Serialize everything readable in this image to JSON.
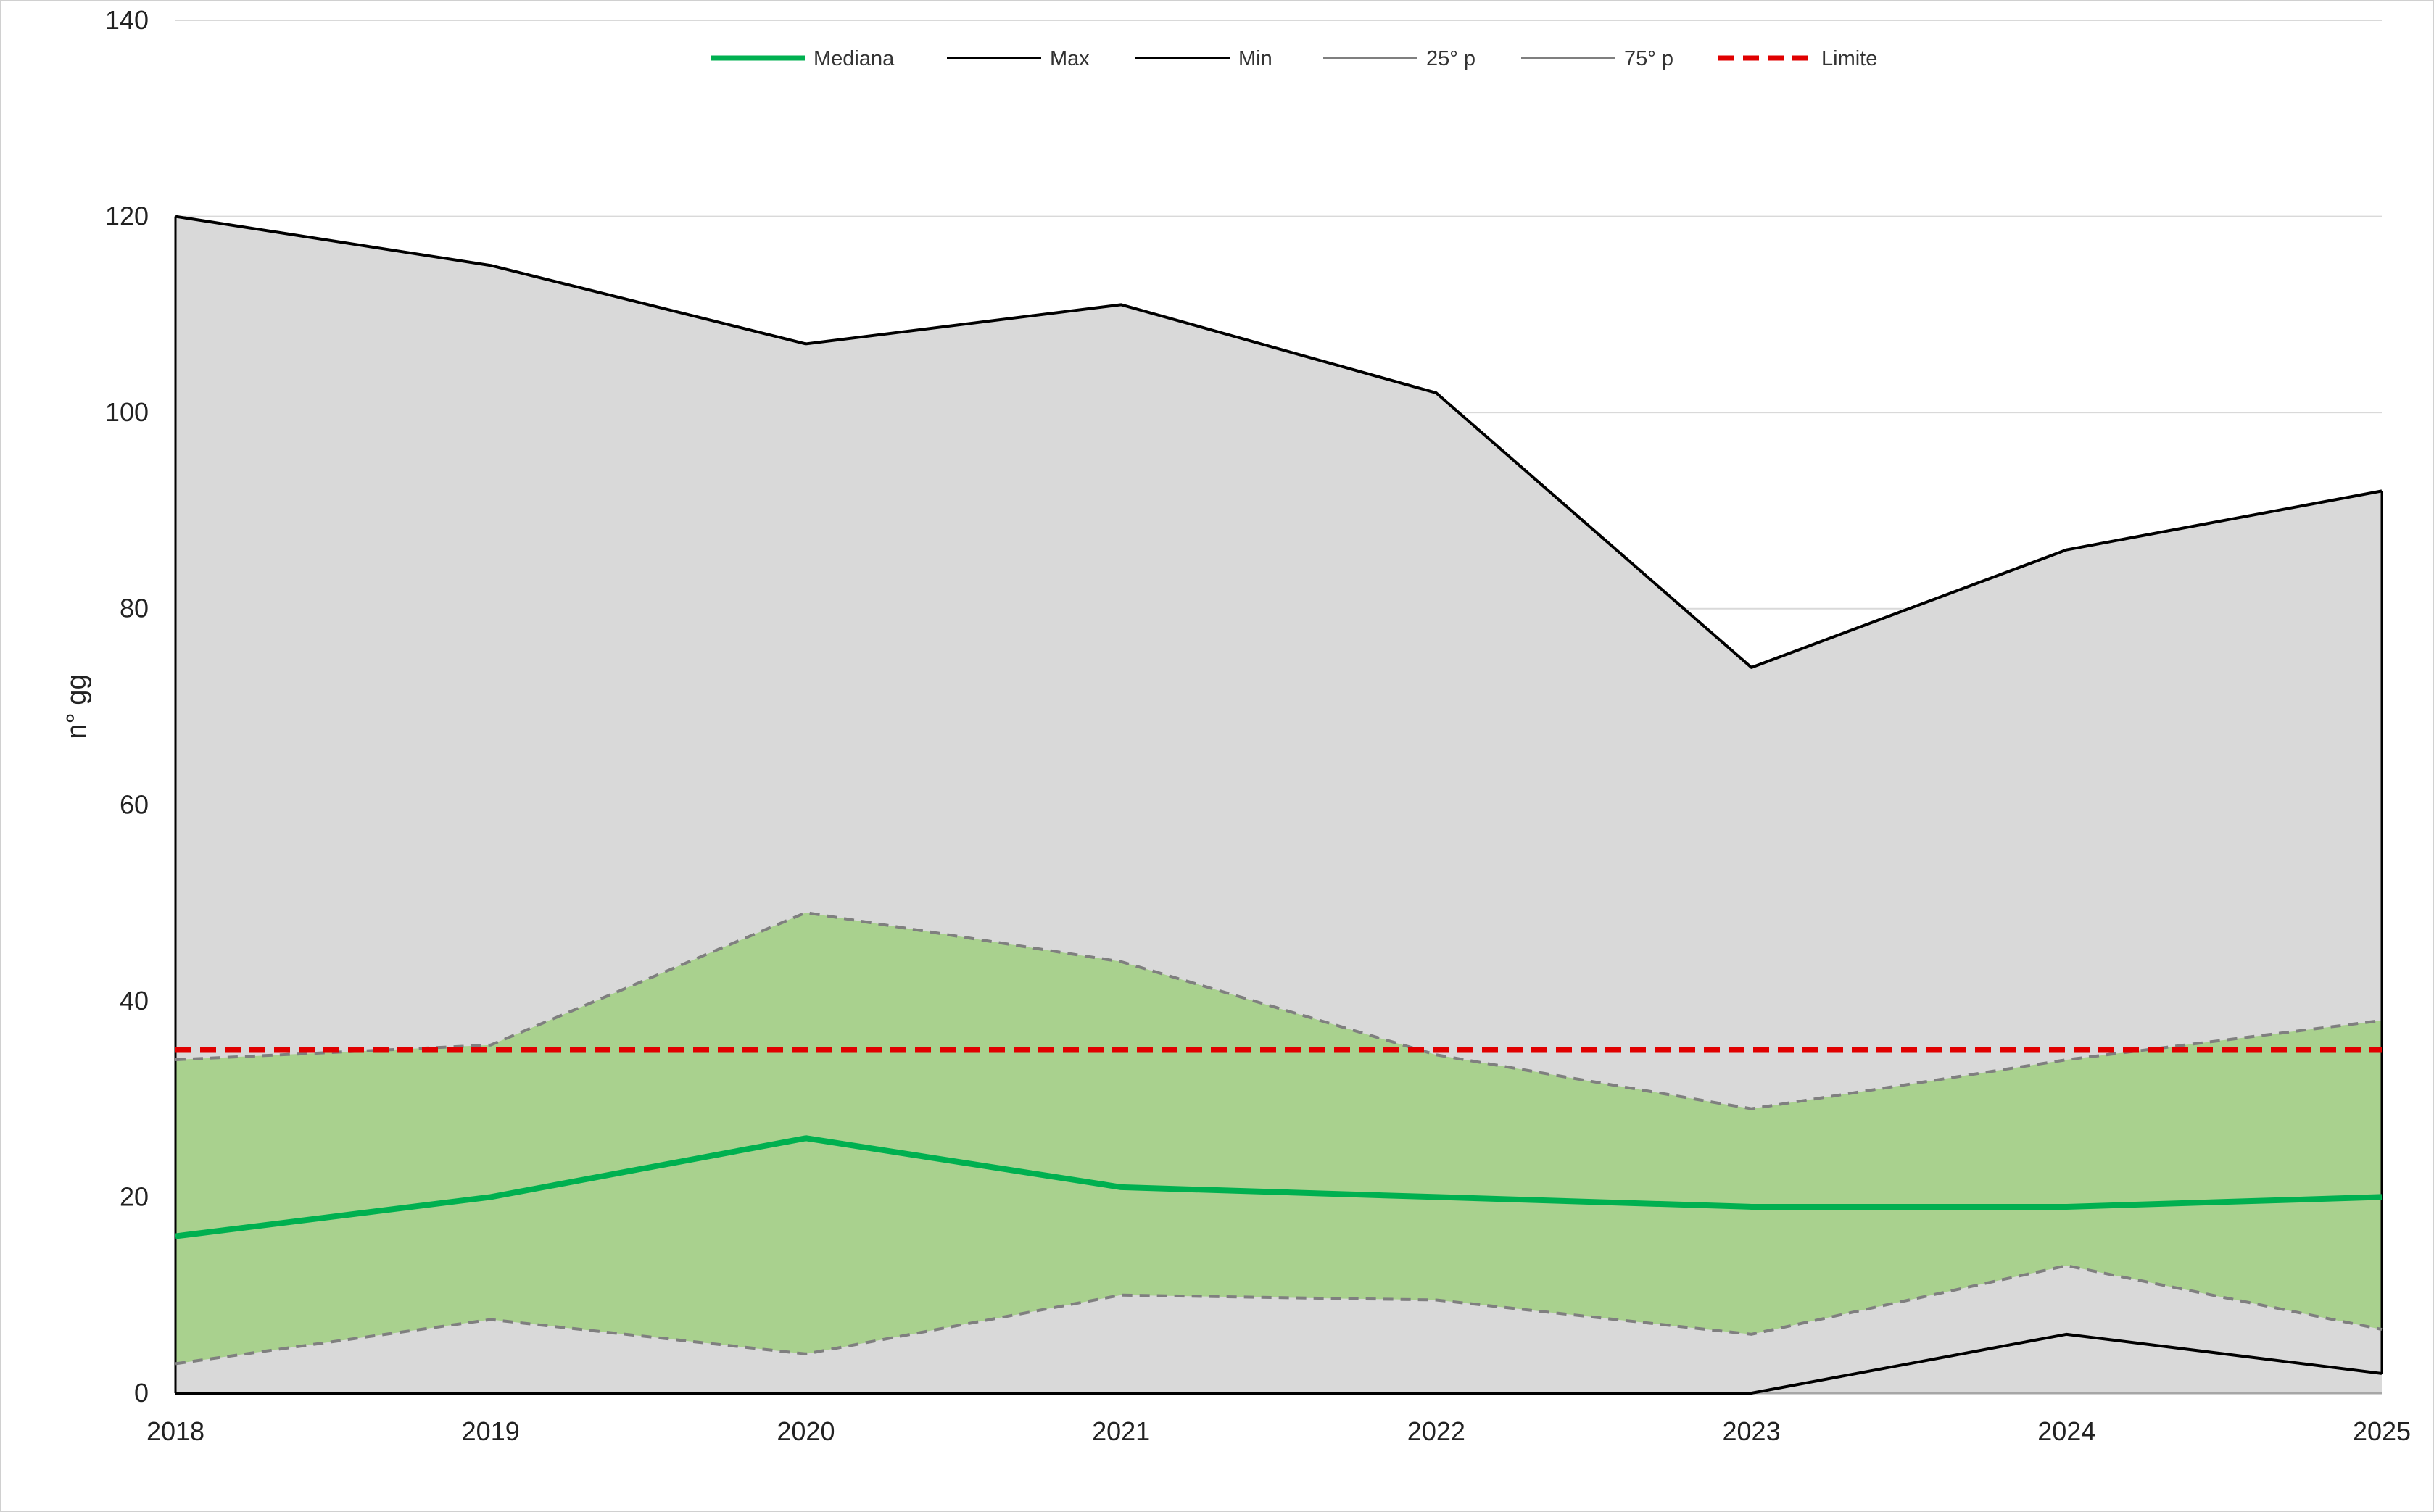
{
  "chart_data": {
    "type": "area",
    "title": "",
    "xlabel": "",
    "ylabel": "n° gg",
    "x": [
      "2018",
      "2019",
      "2020",
      "2021",
      "2022",
      "2023",
      "2024",
      "2025"
    ],
    "ylim": [
      0,
      140
    ],
    "yticks": [
      "0",
      "20",
      "40",
      "60",
      "80",
      "100",
      "120",
      "140"
    ],
    "grid": true,
    "legend_position": "top-center",
    "series": [
      {
        "name": "Mediana",
        "values": [
          16,
          20,
          26,
          21,
          20,
          19,
          19,
          20
        ],
        "color": "#00b050",
        "style": "solid-thick"
      },
      {
        "name": "Max",
        "values": [
          120,
          115,
          107,
          111,
          102,
          74,
          86,
          92
        ],
        "color": "#000000",
        "style": "solid"
      },
      {
        "name": "Min",
        "values": [
          0,
          0,
          0,
          0,
          0,
          0,
          6,
          2
        ],
        "color": "#000000",
        "style": "solid"
      },
      {
        "name": "25° p",
        "values": [
          3,
          7.5,
          4,
          10,
          9.5,
          6,
          13,
          6.5
        ],
        "color": "#7f7f7f",
        "style": "dashed"
      },
      {
        "name": "75° p",
        "values": [
          34,
          35.5,
          49,
          44,
          34.5,
          29,
          34,
          38
        ],
        "color": "#7f7f7f",
        "style": "dashed"
      },
      {
        "name": "Limite",
        "values": [
          35,
          35,
          35,
          35,
          35,
          35,
          35,
          35
        ],
        "color": "#e00000",
        "style": "dashed-thick"
      }
    ],
    "fills": {
      "range_color": "#d9d9d9",
      "iqr_color": "#a9d18e"
    }
  }
}
